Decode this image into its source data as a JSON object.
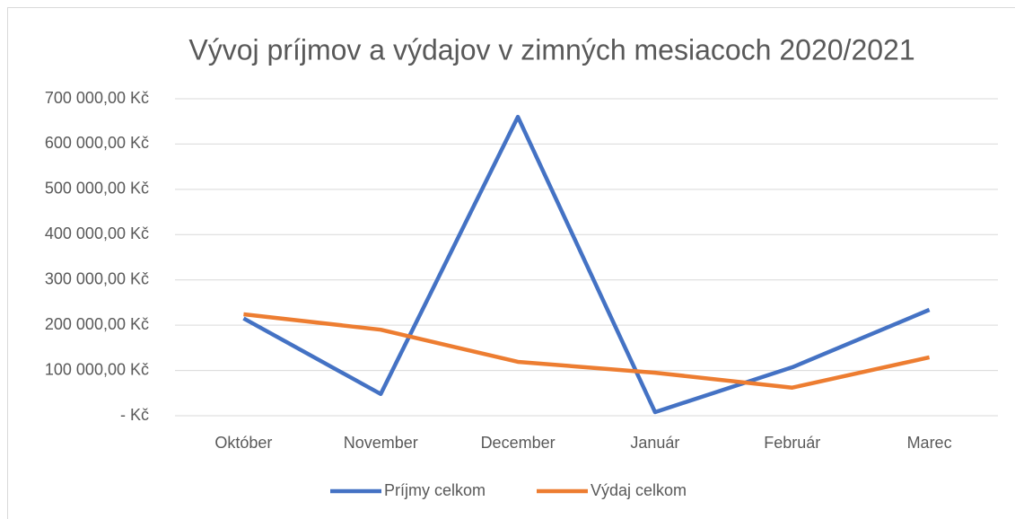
{
  "chart_data": {
    "type": "line",
    "title": "Vývoj príjmov a výdajov v zimných mesiacoch 2020/2021",
    "categories": [
      "Október",
      "November",
      "December",
      "Január",
      "Február",
      "Marec"
    ],
    "series": [
      {
        "name": "Príjmy celkom",
        "color": "#4472c4",
        "values": [
          215000,
          48000,
          660000,
          8000,
          107000,
          234000
        ]
      },
      {
        "name": "Výdaj celkom",
        "color": "#ed7d31",
        "values": [
          224000,
          190000,
          119000,
          95000,
          62000,
          129000
        ]
      }
    ],
    "ylim": [
      0,
      700000
    ],
    "yticks": [
      {
        "value": 0,
        "label": "-   Kč"
      },
      {
        "value": 100000,
        "label": "100 000,00 Kč"
      },
      {
        "value": 200000,
        "label": "200 000,00 Kč"
      },
      {
        "value": 300000,
        "label": "300 000,00 Kč"
      },
      {
        "value": 400000,
        "label": "400 000,00 Kč"
      },
      {
        "value": 500000,
        "label": "500 000,00 Kč"
      },
      {
        "value": 600000,
        "label": "600 000,00 Kč"
      },
      {
        "value": 700000,
        "label": "700 000,00 Kč"
      }
    ],
    "grid": true,
    "legend": "bottom"
  }
}
